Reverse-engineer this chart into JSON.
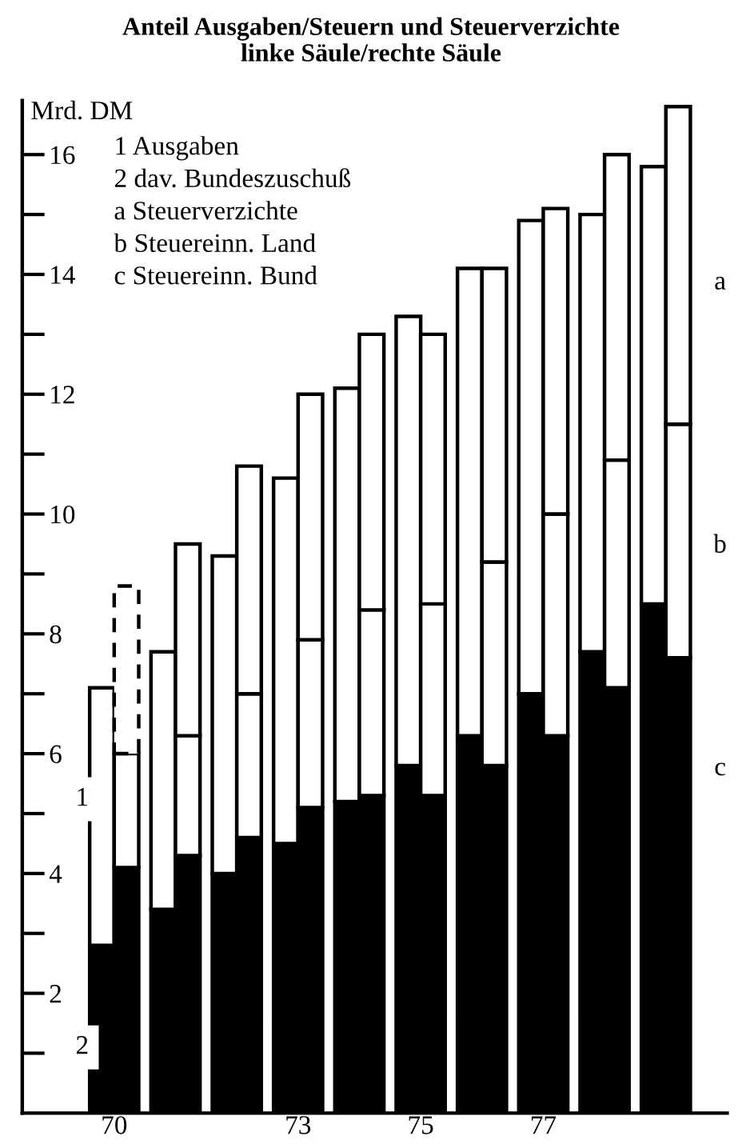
{
  "chart_data": {
    "type": "bar",
    "stacked": true,
    "title": "Anteil Ausgaben/Steuern und Steuerverzichte",
    "subtitle": "linke Säule/rechte Säule",
    "ylabel": "Mrd. DM",
    "xlim": [
      68.5,
      80
    ],
    "xticks": [
      70,
      73,
      75,
      77
    ],
    "ylim": [
      0,
      16.9
    ],
    "yticks": [
      {
        "value": 1,
        "label": null
      },
      2,
      {
        "value": 3,
        "label": null
      },
      4,
      {
        "value": 5,
        "label": null
      },
      6,
      {
        "value": 7,
        "label": null
      },
      8,
      {
        "value": 9,
        "label": null
      },
      10,
      {
        "value": 11,
        "label": null
      },
      12,
      {
        "value": 13,
        "label": null
      },
      14,
      {
        "value": 15,
        "label": null
      },
      16
    ],
    "grid": false,
    "x": [
      69.8,
      70.2,
      70.8,
      71.2,
      71.8,
      72.2,
      72.8,
      73.2,
      73.8,
      74.2,
      74.8,
      75.2,
      75.8,
      76.2,
      76.8,
      77.2,
      77.8,
      78.2,
      78.8,
      79.2
    ],
    "series": [
      {
        "color": "#000000",
        "values": [
          2.8,
          null,
          3.4,
          null,
          4.0,
          null,
          4.5,
          null,
          5.2,
          null,
          5.8,
          null,
          6.3,
          null,
          7.0,
          null,
          7.7,
          null,
          8.5,
          null
        ]
      },
      {
        "color": "#ffffff",
        "values": [
          4.3,
          null,
          4.3,
          null,
          5.3,
          null,
          6.1,
          null,
          6.9,
          null,
          7.5,
          null,
          7.8,
          null,
          7.9,
          null,
          7.3,
          null,
          7.3,
          null
        ]
      },
      {
        "color": "#000000",
        "values": [
          null,
          4.1,
          null,
          4.3,
          null,
          4.6,
          null,
          5.1,
          null,
          5.3,
          null,
          5.3,
          null,
          5.8,
          null,
          6.3,
          null,
          7.1,
          null,
          7.6
        ]
      },
      {
        "color": "#ffffff",
        "values": [
          null,
          1.9,
          null,
          2.0,
          null,
          2.4,
          null,
          2.8,
          null,
          3.1,
          null,
          3.2,
          null,
          3.4,
          null,
          3.7,
          null,
          3.8,
          null,
          3.9
        ]
      },
      {
        "color": "#ffffff",
        "line_style": "dashed",
        "values": [
          null,
          2.8,
          null,
          null,
          null,
          null,
          null,
          null,
          null,
          null,
          null,
          null,
          null,
          null,
          null,
          null,
          null,
          null,
          null,
          null
        ]
      },
      {
        "color": "#ffffff",
        "values": [
          null,
          null,
          null,
          3.2,
          null,
          3.8,
          null,
          4.1,
          null,
          4.6,
          null,
          4.5,
          null,
          4.9,
          null,
          5.1,
          null,
          5.1,
          null,
          5.3
        ]
      }
    ],
    "annotations": [
      "1 Ausgaben",
      "2 dav. Bundeszuschuß",
      "a Steuerverzichte",
      "b Steuereinn. Land",
      "c Steuereinn. Bund",
      "1",
      "2",
      "a",
      "b",
      "c"
    ]
  }
}
